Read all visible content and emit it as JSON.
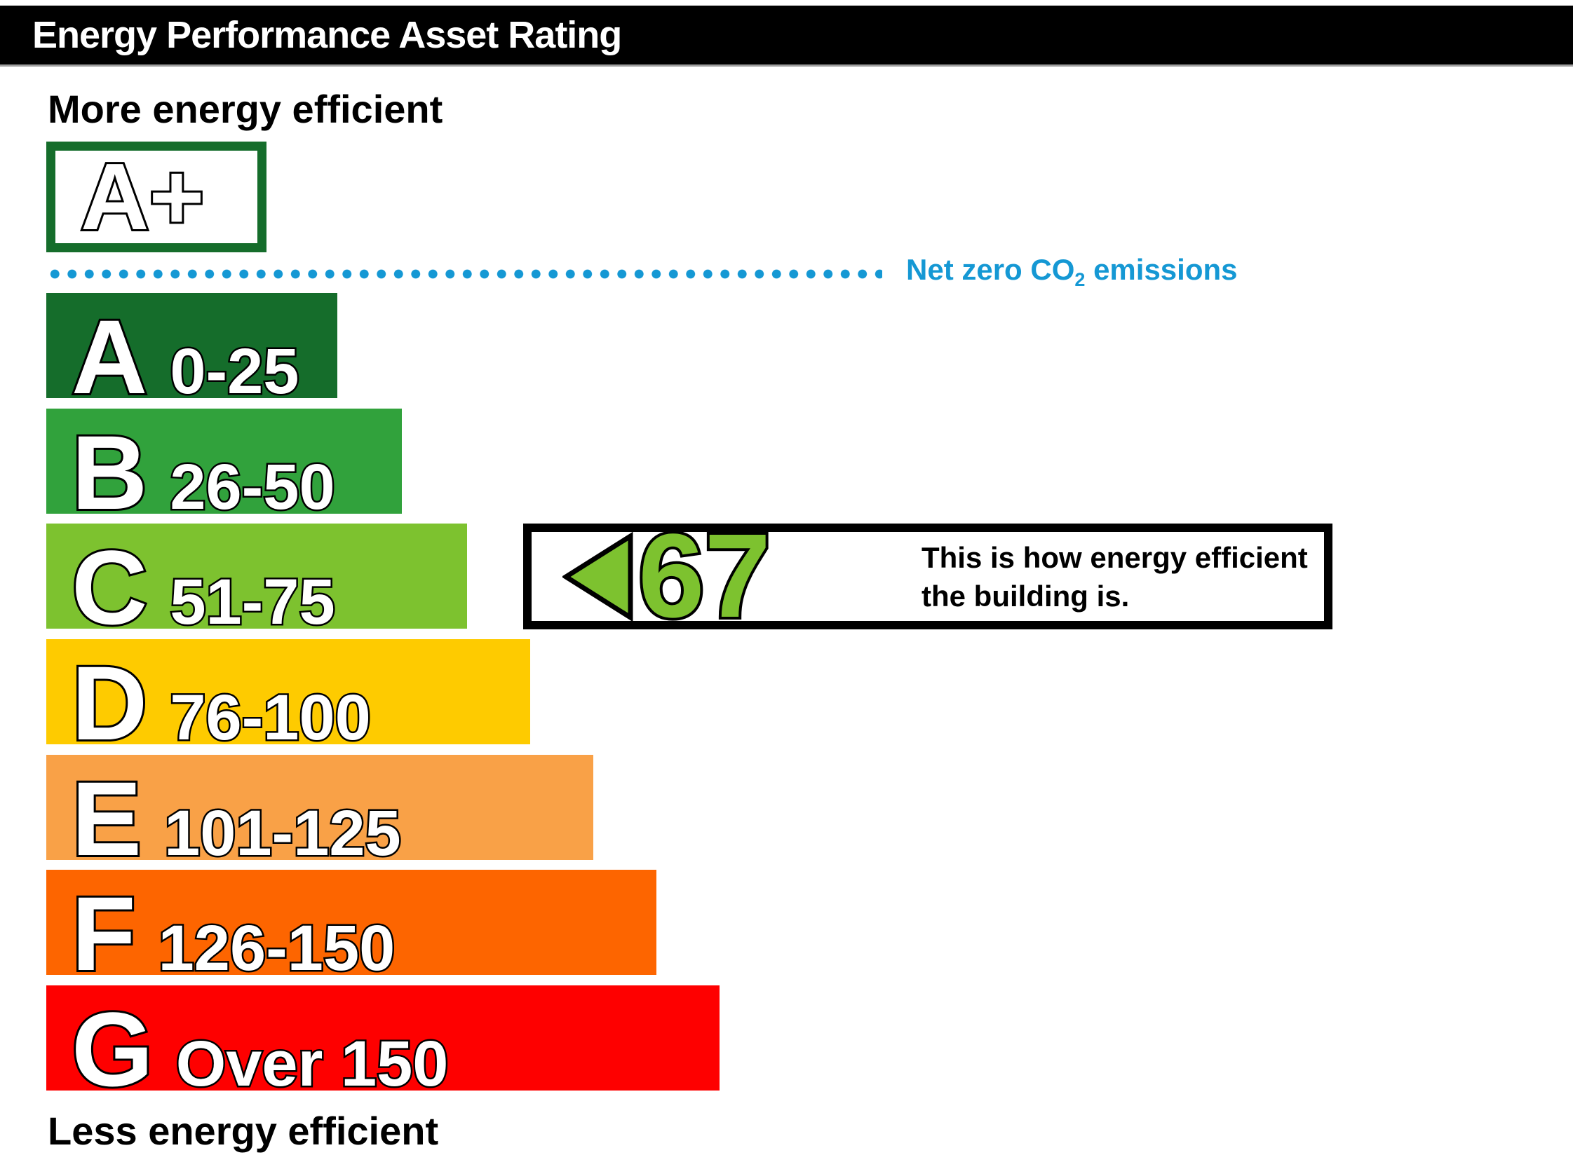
{
  "header": {
    "title": "Energy Performance Asset Rating"
  },
  "captions": {
    "top": "More energy efficient",
    "bottom": "Less energy efficient"
  },
  "top_band": {
    "label": "A+",
    "border_color": "#156D2B"
  },
  "net_zero": {
    "label_pre": "Net zero CO",
    "label_sub": "2",
    "label_post": " emissions",
    "color": "#1598D4"
  },
  "bands": [
    {
      "letter": "A",
      "range": "0-25",
      "color": "#156D2B"
    },
    {
      "letter": "B",
      "range": "26-50",
      "color": "#31A23C"
    },
    {
      "letter": "C",
      "range": "51-75",
      "color": "#7DC22F"
    },
    {
      "letter": "D",
      "range": "76-100",
      "color": "#FECB00"
    },
    {
      "letter": "E",
      "range": "101-125",
      "color": "#F9A147"
    },
    {
      "letter": "F",
      "range": "126-150",
      "color": "#FD6500"
    },
    {
      "letter": "G",
      "range": "Over 150",
      "color": "#FE0000"
    }
  ],
  "indicator": {
    "value": "67",
    "band": "C",
    "arrow_color": "#7DC22F",
    "text_line1": "This is how energy efficient",
    "text_line2": "the building is."
  },
  "chart_data": {
    "type": "bar",
    "title": "Energy Performance Asset Rating",
    "categories": [
      "A+",
      "A",
      "B",
      "C",
      "D",
      "E",
      "F",
      "G"
    ],
    "ranges": [
      "Net zero CO2 emissions",
      "0-25",
      "26-50",
      "51-75",
      "76-100",
      "101-125",
      "126-150",
      "Over 150"
    ],
    "colors": [
      "#156D2B",
      "#156D2B",
      "#31A23C",
      "#7DC22F",
      "#FECB00",
      "#F9A147",
      "#FD6500",
      "#FE0000"
    ],
    "value": 67,
    "value_band": "C",
    "axis_top_label": "More energy efficient",
    "axis_bottom_label": "Less energy efficient",
    "annotation": "This is how energy efficient the building is."
  }
}
